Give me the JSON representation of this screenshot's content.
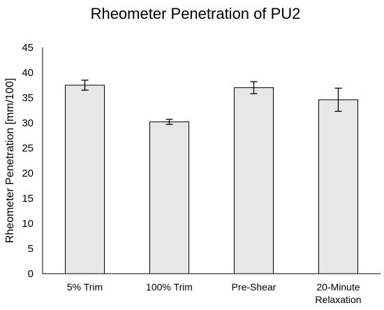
{
  "chart_data": {
    "type": "bar",
    "title": "Rheometer Penetration of PU2",
    "xlabel": "",
    "ylabel": "Rheometer Penetration [mm/100]",
    "categories": [
      [
        "5% Trim"
      ],
      [
        "100% Trim"
      ],
      [
        "Pre-Shear"
      ],
      [
        "20-Minute",
        "Relaxation"
      ]
    ],
    "values": [
      37.5,
      30.2,
      37.0,
      34.6
    ],
    "error": [
      1.0,
      0.5,
      1.2,
      2.3
    ],
    "ylim": [
      0,
      45
    ],
    "yticks": [
      "0",
      "5",
      "10",
      "15",
      "20",
      "25",
      "30",
      "35",
      "40",
      "45"
    ],
    "grid": false,
    "legend": "none",
    "colors": {
      "bar_fill": "#e7e7e7",
      "bar_stroke": "#000000",
      "axis": "#000000"
    }
  }
}
